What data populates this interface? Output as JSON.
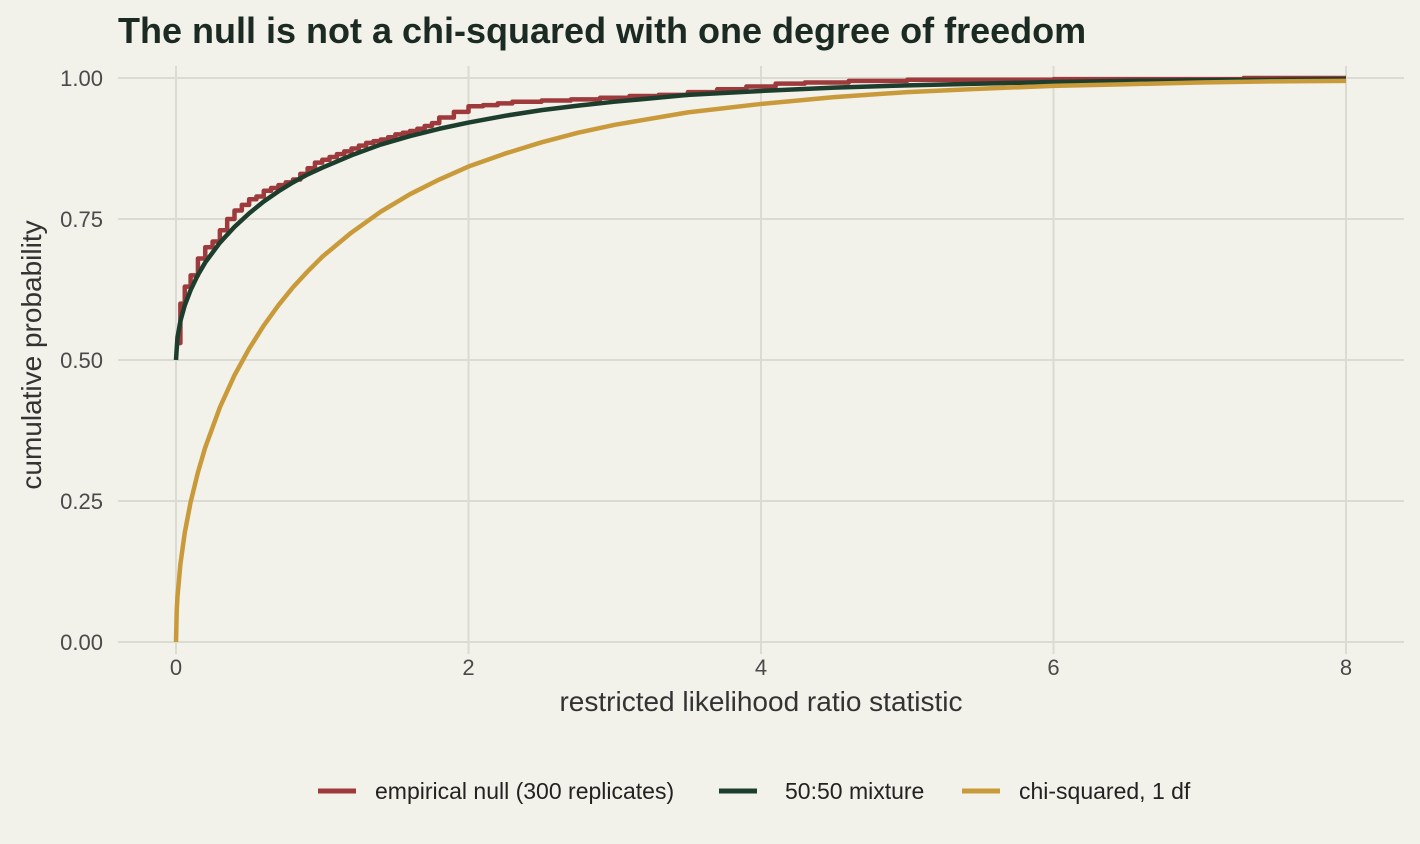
{
  "chart_data": {
    "type": "line",
    "title": "The null is not a chi-squared with one degree of freedom",
    "xlabel": "restricted likelihood ratio statistic",
    "ylabel": "cumulative probability",
    "xlim": [
      0,
      8
    ],
    "ylim": [
      0,
      1
    ],
    "x_ticks": [
      0,
      2,
      4,
      6,
      8
    ],
    "x_tick_labels": [
      "0",
      "2",
      "4",
      "6",
      "8"
    ],
    "y_ticks": [
      0,
      0.25,
      0.5,
      0.75,
      1
    ],
    "y_tick_labels": [
      "0.00",
      "0.25",
      "0.50",
      "0.75",
      "1.00"
    ],
    "grid": true,
    "legend_position": "bottom",
    "series": [
      {
        "name": "empirical null (300 replicates)",
        "color": "#9e3a3c",
        "x": [
          0,
          0.03,
          0.06,
          0.1,
          0.15,
          0.2,
          0.25,
          0.3,
          0.35,
          0.4,
          0.45,
          0.5,
          0.55,
          0.6,
          0.65,
          0.7,
          0.75,
          0.8,
          0.85,
          0.9,
          0.95,
          1.0,
          1.05,
          1.1,
          1.15,
          1.2,
          1.25,
          1.3,
          1.35,
          1.4,
          1.45,
          1.5,
          1.55,
          1.6,
          1.65,
          1.7,
          1.75,
          1.8,
          1.9,
          2.0,
          2.1,
          2.2,
          2.3,
          2.5,
          2.7,
          2.9,
          3.1,
          3.3,
          3.5,
          3.7,
          3.9,
          4.1,
          4.3,
          4.6,
          5.0,
          5.5,
          6.0,
          6.5,
          7.0,
          7.3,
          7.6,
          8.0
        ],
        "y": [
          0.53,
          0.6,
          0.63,
          0.65,
          0.68,
          0.7,
          0.71,
          0.73,
          0.75,
          0.765,
          0.775,
          0.785,
          0.79,
          0.8,
          0.805,
          0.81,
          0.815,
          0.82,
          0.83,
          0.84,
          0.85,
          0.855,
          0.86,
          0.865,
          0.87,
          0.875,
          0.88,
          0.885,
          0.888,
          0.891,
          0.895,
          0.9,
          0.903,
          0.906,
          0.91,
          0.915,
          0.92,
          0.93,
          0.94,
          0.95,
          0.952,
          0.955,
          0.958,
          0.96,
          0.962,
          0.965,
          0.968,
          0.97,
          0.975,
          0.98,
          0.985,
          0.99,
          0.992,
          0.995,
          0.997,
          0.997,
          0.998,
          0.998,
          0.998,
          1.0,
          1.0,
          1.0
        ]
      },
      {
        "name": "50:50 mixture",
        "color": "#1d3e2d",
        "x": [
          0,
          0.01,
          0.03,
          0.06,
          0.1,
          0.15,
          0.2,
          0.3,
          0.4,
          0.5,
          0.6,
          0.7,
          0.8,
          0.9,
          1.0,
          1.2,
          1.4,
          1.6,
          1.8,
          2.0,
          2.25,
          2.5,
          2.75,
          3.0,
          3.5,
          4.0,
          4.5,
          5.0,
          5.5,
          6.0,
          6.5,
          7.0,
          7.5,
          8.0
        ],
        "y": [
          0.5,
          0.54,
          0.569,
          0.597,
          0.624,
          0.651,
          0.673,
          0.708,
          0.736,
          0.76,
          0.781,
          0.799,
          0.815,
          0.829,
          0.841,
          0.863,
          0.882,
          0.897,
          0.91,
          0.921,
          0.933,
          0.943,
          0.951,
          0.958,
          0.97,
          0.977,
          0.983,
          0.987,
          0.99,
          0.993,
          0.995,
          0.996,
          0.997,
          0.998
        ]
      },
      {
        "name": "chi-squared, 1 df",
        "color": "#c99a3a",
        "x": [
          0,
          0.005,
          0.01,
          0.03,
          0.06,
          0.1,
          0.15,
          0.2,
          0.3,
          0.4,
          0.5,
          0.6,
          0.7,
          0.8,
          0.9,
          1.0,
          1.2,
          1.4,
          1.6,
          1.8,
          2.0,
          2.25,
          2.5,
          2.75,
          3.0,
          3.5,
          4.0,
          4.5,
          5.0,
          5.5,
          6.0,
          6.5,
          7.0,
          7.5,
          8.0
        ],
        "y": [
          0,
          0.056,
          0.08,
          0.138,
          0.194,
          0.248,
          0.301,
          0.345,
          0.416,
          0.473,
          0.52,
          0.561,
          0.597,
          0.629,
          0.657,
          0.683,
          0.726,
          0.763,
          0.794,
          0.82,
          0.843,
          0.866,
          0.886,
          0.903,
          0.917,
          0.939,
          0.954,
          0.966,
          0.975,
          0.981,
          0.986,
          0.989,
          0.992,
          0.994,
          0.995
        ]
      }
    ]
  }
}
